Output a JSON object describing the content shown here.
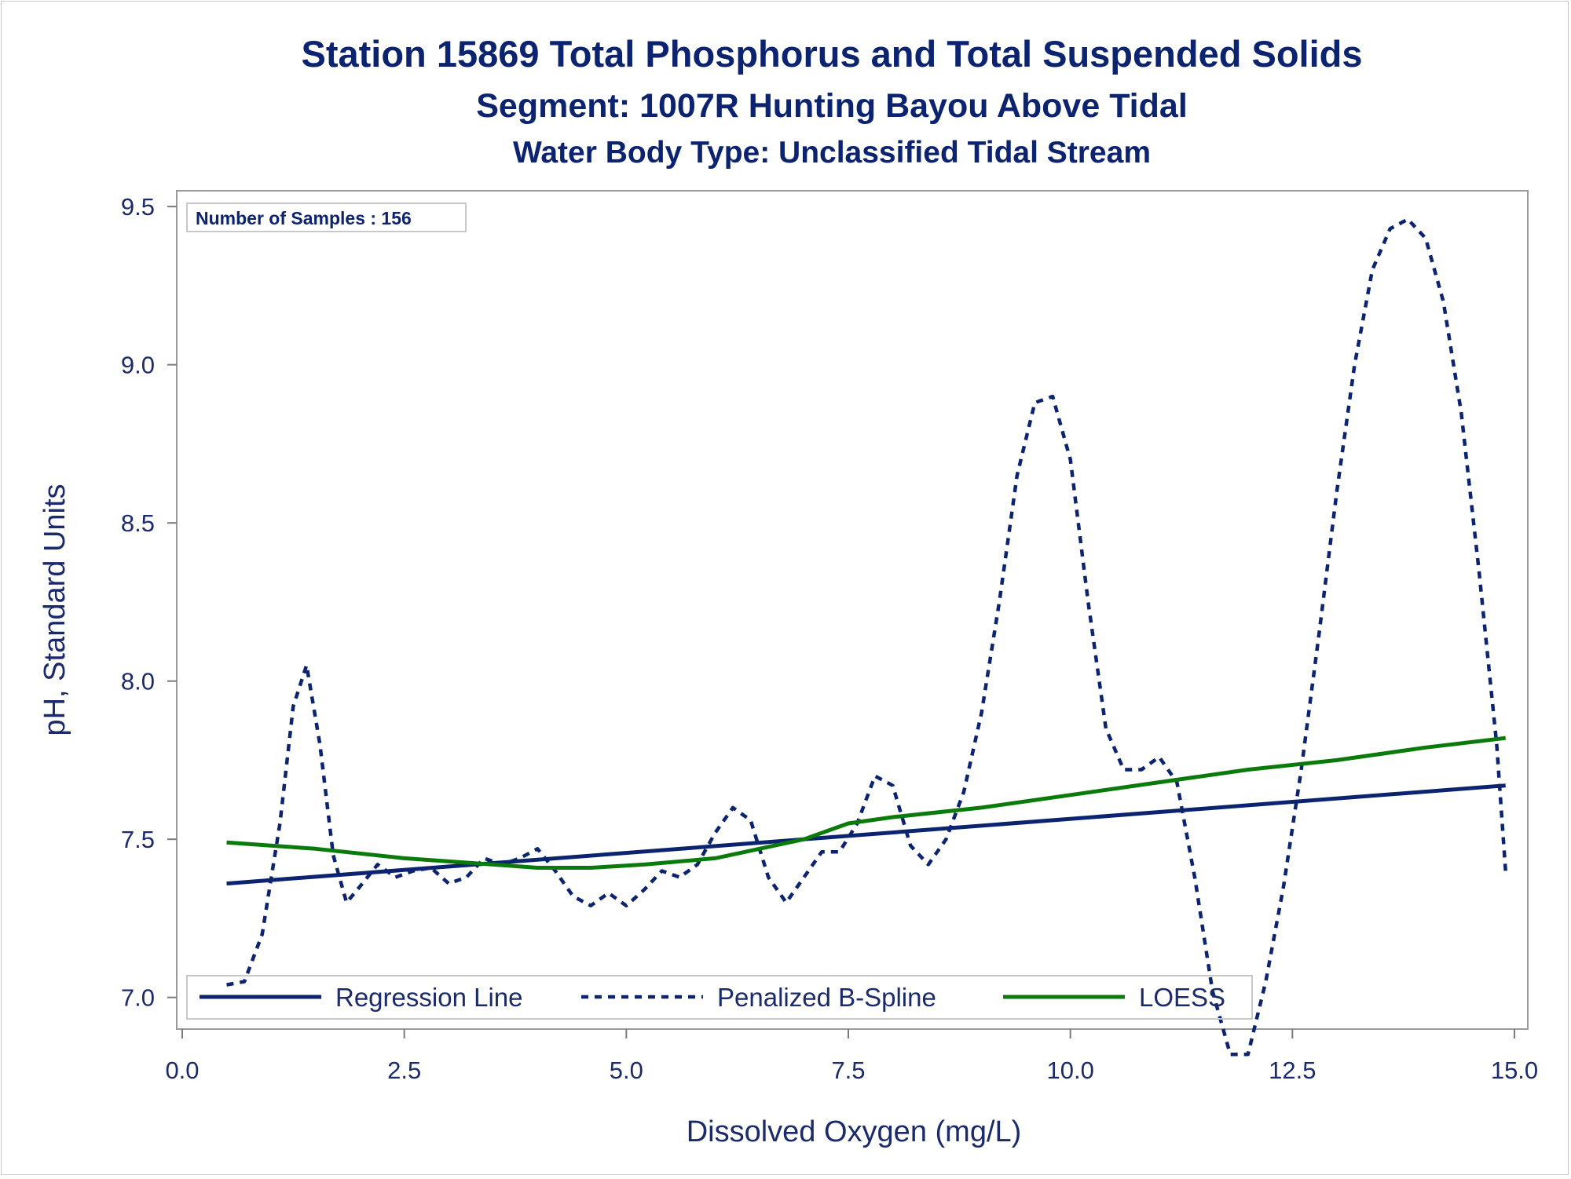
{
  "chart_data": {
    "type": "line",
    "title": "Station 15869  Total Phosphorus and Total Suspended Solids",
    "subtitle": "Segment: 1007R  Hunting Bayou Above Tidal",
    "subtitle2": "Water Body Type: Unclassified Tidal Stream",
    "xlabel": "Dissolved Oxygen (mg/L)",
    "ylabel": "pH, Standard Units",
    "xlim": [
      0,
      15
    ],
    "ylim": [
      6.9,
      9.55
    ],
    "xticks": [
      "0.0",
      "2.5",
      "5.0",
      "7.5",
      "10.0",
      "12.5",
      "15.0"
    ],
    "xtick_values": [
      0,
      2.5,
      5,
      7.5,
      10,
      12.5,
      15
    ],
    "yticks": [
      "7.0",
      "7.5",
      "8.0",
      "8.5",
      "9.0",
      "9.5"
    ],
    "ytick_values": [
      7.0,
      7.5,
      8.0,
      8.5,
      9.0,
      9.5
    ],
    "grid": false,
    "legend_position": "bottom-inside",
    "inset_label": "Number of Samples : 156",
    "series": [
      {
        "name": "Regression Line",
        "style": "solid",
        "color": "#0c2470",
        "x": [
          0.5,
          14.9
        ],
        "y": [
          7.36,
          7.67
        ]
      },
      {
        "name": "Penalized B-Spline",
        "style": "dashed",
        "color": "#0c2470",
        "x": [
          0.5,
          0.7,
          0.9,
          1.1,
          1.25,
          1.4,
          1.55,
          1.7,
          1.85,
          2.0,
          2.2,
          2.4,
          2.6,
          2.8,
          3.0,
          3.2,
          3.4,
          3.6,
          3.8,
          4.0,
          4.2,
          4.4,
          4.6,
          4.8,
          5.0,
          5.2,
          5.4,
          5.6,
          5.8,
          6.0,
          6.2,
          6.4,
          6.6,
          6.8,
          7.0,
          7.2,
          7.4,
          7.6,
          7.8,
          8.0,
          8.2,
          8.4,
          8.6,
          8.8,
          9.0,
          9.2,
          9.4,
          9.6,
          9.8,
          10.0,
          10.2,
          10.4,
          10.6,
          10.8,
          11.0,
          11.2,
          11.4,
          11.6,
          11.8,
          12.0,
          12.2,
          12.4,
          12.6,
          12.8,
          13.0,
          13.2,
          13.4,
          13.6,
          13.8,
          14.0,
          14.2,
          14.4,
          14.6,
          14.8,
          14.9
        ],
        "y": [
          7.04,
          7.05,
          7.2,
          7.55,
          7.92,
          8.05,
          7.8,
          7.45,
          7.3,
          7.35,
          7.42,
          7.38,
          7.4,
          7.41,
          7.36,
          7.38,
          7.44,
          7.42,
          7.44,
          7.47,
          7.4,
          7.32,
          7.29,
          7.33,
          7.29,
          7.34,
          7.4,
          7.38,
          7.42,
          7.52,
          7.6,
          7.56,
          7.38,
          7.3,
          7.38,
          7.46,
          7.46,
          7.55,
          7.7,
          7.67,
          7.48,
          7.42,
          7.5,
          7.65,
          7.9,
          8.25,
          8.65,
          8.88,
          8.9,
          8.7,
          8.25,
          7.85,
          7.72,
          7.72,
          7.76,
          7.68,
          7.38,
          7.02,
          6.82,
          6.82,
          7.05,
          7.35,
          7.72,
          8.15,
          8.6,
          9.0,
          9.3,
          9.43,
          9.46,
          9.4,
          9.2,
          8.85,
          8.35,
          7.8,
          7.4
        ]
      },
      {
        "name": "LOESS",
        "style": "solid",
        "color": "#0a7a0a",
        "x": [
          0.5,
          1.5,
          2.5,
          3.5,
          4.0,
          4.6,
          5.2,
          6.0,
          6.5,
          7.0,
          7.5,
          8.0,
          9.0,
          10.0,
          11.0,
          12.0,
          13.0,
          14.0,
          14.9
        ],
        "y": [
          7.49,
          7.47,
          7.44,
          7.42,
          7.41,
          7.41,
          7.42,
          7.44,
          7.47,
          7.5,
          7.55,
          7.57,
          7.6,
          7.64,
          7.68,
          7.72,
          7.75,
          7.79,
          7.82
        ]
      }
    ]
  }
}
